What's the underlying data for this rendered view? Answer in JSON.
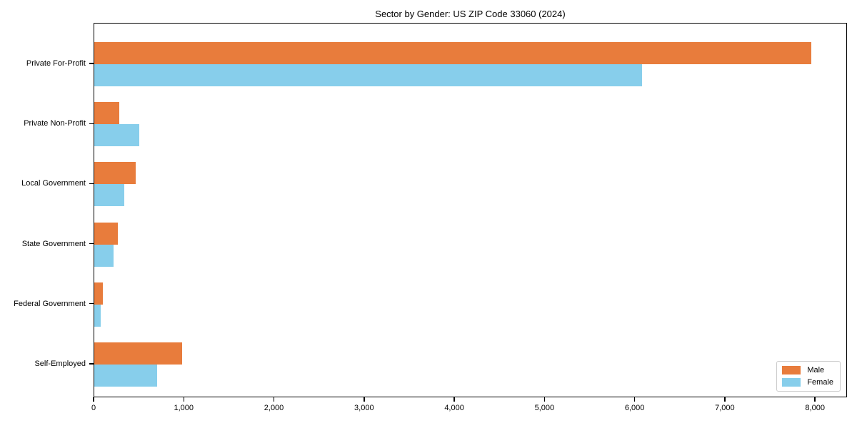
{
  "chart_data": {
    "type": "bar",
    "orientation": "horizontal",
    "title": "Sector by Gender: US ZIP Code 33060 (2024)",
    "categories": [
      "Private For-Profit",
      "Private Non-Profit",
      "Local Government",
      "State Government",
      "Federal Government",
      "Self-Employed"
    ],
    "series": [
      {
        "name": "Male",
        "color": "#e87c3c",
        "values": [
          7950,
          280,
          460,
          260,
          95,
          970
        ]
      },
      {
        "name": "Female",
        "color": "#87ceeb",
        "values": [
          6070,
          500,
          335,
          215,
          70,
          700
        ]
      }
    ],
    "xlabel": "",
    "ylabel": "",
    "xlim": [
      0,
      8355
    ],
    "xticks": [
      0,
      1000,
      2000,
      3000,
      4000,
      5000,
      6000,
      7000,
      8000
    ],
    "xtick_labels": [
      "0",
      "1,000",
      "2,000",
      "3,000",
      "4,000",
      "5,000",
      "6,000",
      "7,000",
      "8,000"
    ],
    "grid": false,
    "legend_position": "lower right",
    "axis_color": "#000000",
    "background_color": "#ffffff"
  }
}
